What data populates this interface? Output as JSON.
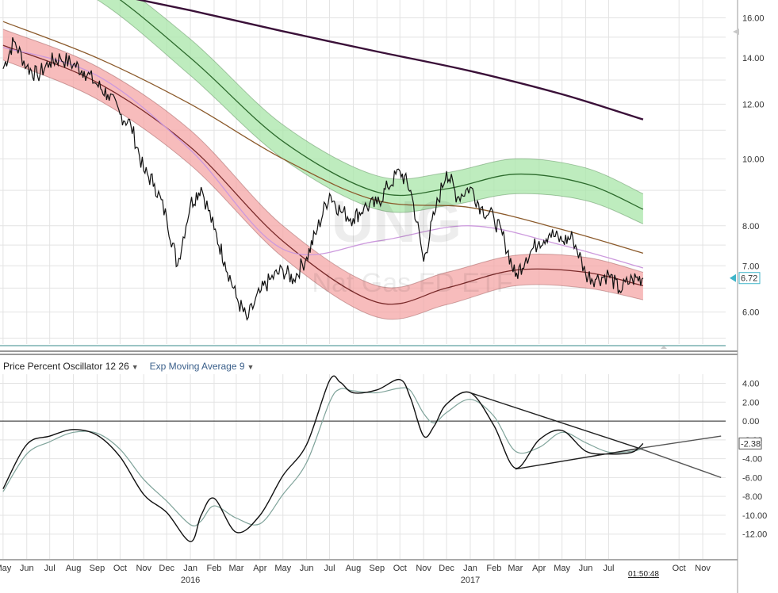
{
  "chart_data": [
    {
      "type": "line",
      "title": "",
      "watermark_symbol": "UNG",
      "watermark_name": "Nat Gas FD ETF",
      "ylim": [
        5.45,
        16.8
      ],
      "y_scale": "log",
      "y_ticks": [
        "16.00",
        "14.00",
        "12.00",
        "10.00",
        "8.00",
        "7.00",
        "6.00"
      ],
      "y_tick_values": [
        16,
        14,
        12,
        10,
        8,
        7,
        6
      ],
      "last_price_label": "6.72",
      "last_price": 6.72,
      "price_series": {
        "name": "",
        "color": "#111111",
        "x": [
          "2015-05-01",
          "2015-05-15",
          "2015-06-01",
          "2015-06-15",
          "2015-07-01",
          "2015-07-15",
          "2015-08-01",
          "2015-08-15",
          "2015-09-01",
          "2015-09-15",
          "2015-10-01",
          "2015-10-15",
          "2015-11-01",
          "2015-11-15",
          "2015-12-01",
          "2015-12-15",
          "2016-01-01",
          "2016-01-15",
          "2016-02-01",
          "2016-02-15",
          "2016-03-01",
          "2016-03-15",
          "2016-04-01",
          "2016-04-15",
          "2016-05-01",
          "2016-05-15",
          "2016-06-01",
          "2016-06-15",
          "2016-07-01",
          "2016-07-15",
          "2016-08-01",
          "2016-08-15",
          "2016-09-01",
          "2016-09-15",
          "2016-10-01",
          "2016-10-15",
          "2016-11-01",
          "2016-11-15",
          "2016-12-01",
          "2016-12-15",
          "2017-01-01",
          "2017-01-15",
          "2017-02-01",
          "2017-02-15",
          "2017-03-01",
          "2017-03-15",
          "2017-04-01",
          "2017-04-15",
          "2017-05-01",
          "2017-05-15",
          "2017-06-01",
          "2017-06-15",
          "2017-07-01",
          "2017-07-15",
          "2017-08-01",
          "2017-08-15"
        ],
        "values": [
          13.5,
          14.8,
          13.6,
          13.2,
          13.8,
          14.0,
          13.7,
          13.4,
          12.8,
          12.4,
          11.6,
          11.2,
          9.6,
          9.2,
          8.2,
          7.0,
          8.6,
          9.1,
          7.9,
          7.1,
          6.3,
          5.85,
          6.4,
          6.7,
          6.9,
          6.7,
          7.2,
          7.9,
          8.9,
          8.4,
          8.2,
          8.5,
          8.6,
          9.1,
          9.6,
          9.0,
          7.1,
          8.3,
          9.6,
          8.8,
          9.1,
          8.5,
          8.2,
          7.6,
          6.75,
          7.2,
          7.6,
          7.8,
          7.6,
          7.7,
          6.8,
          6.7,
          6.8,
          6.45,
          6.7,
          6.72
        ]
      },
      "overlays": [
        {
          "name": "",
          "color": "#3a1038",
          "x": [
            "2015-05-01",
            "2015-09-01",
            "2016-01-01",
            "2016-05-01",
            "2016-09-01",
            "2017-01-01",
            "2017-05-01",
            "2017-08-15"
          ],
          "values": [
            18.6,
            17.5,
            16.4,
            15.3,
            14.3,
            13.4,
            12.4,
            11.4
          ]
        },
        {
          "name": "",
          "color": "#8b5a2b",
          "x": [
            "2015-05-01",
            "2015-09-01",
            "2016-01-01",
            "2016-05-01",
            "2016-09-01",
            "2017-01-01",
            "2017-05-01",
            "2017-08-15"
          ],
          "values": [
            15.8,
            14.0,
            12.0,
            10.0,
            8.7,
            8.5,
            7.9,
            7.3
          ]
        },
        {
          "name": "",
          "color": "#cc99dd",
          "x": [
            "2015-05-01",
            "2015-09-01",
            "2016-01-01",
            "2016-05-01",
            "2016-09-01",
            "2017-01-01",
            "2017-05-01",
            "2017-08-15"
          ],
          "values": [
            14.5,
            13.2,
            10.3,
            7.4,
            7.6,
            8.0,
            7.5,
            6.95
          ]
        }
      ],
      "bands": [
        {
          "name": "",
          "fill": "#a8e6a8",
          "line": "#2d6b2d",
          "x": [
            "2015-05-01",
            "2015-09-01",
            "2016-01-01",
            "2016-05-01",
            "2016-09-01",
            "2016-12-01",
            "2017-03-01",
            "2017-06-01",
            "2017-08-15"
          ],
          "mid": [
            20.5,
            17.9,
            14.0,
            10.6,
            8.95,
            9.05,
            9.5,
            9.2,
            8.45
          ],
          "upper": [
            21.4,
            18.8,
            14.9,
            11.2,
            9.45,
            9.55,
            10.0,
            9.7,
            8.9
          ],
          "lower": [
            19.6,
            17.0,
            13.2,
            10.0,
            8.45,
            8.55,
            8.9,
            8.7,
            8.05
          ]
        },
        {
          "name": "",
          "fill": "#f4a6a6",
          "line": "#7a2a2a",
          "x": [
            "2015-05-01",
            "2015-09-01",
            "2016-01-01",
            "2016-05-01",
            "2016-09-01",
            "2016-12-01",
            "2017-03-01",
            "2017-06-01",
            "2017-08-15"
          ],
          "mid": [
            14.6,
            12.9,
            10.4,
            7.6,
            6.2,
            6.5,
            6.9,
            6.85,
            6.55
          ],
          "upper": [
            15.4,
            13.6,
            11.0,
            8.0,
            6.55,
            6.85,
            7.25,
            7.2,
            6.85
          ],
          "lower": [
            13.9,
            12.2,
            9.8,
            7.2,
            5.9,
            6.15,
            6.55,
            6.5,
            6.25
          ]
        }
      ],
      "grid": true,
      "legend": "none"
    },
    {
      "type": "line",
      "title": "",
      "indicator_label": "Price Percent Oscillator 12 26",
      "signal_label": "Exp Moving Average 9",
      "ylim": [
        -13.2,
        4.8
      ],
      "y_ticks": [
        "4.00",
        "2.00",
        "0.00",
        "-2.00",
        "-4.00",
        "-6.00",
        "-8.00",
        "-10.00",
        "-12.00"
      ],
      "y_tick_values": [
        4,
        2,
        0,
        -2,
        -4,
        -6,
        -8,
        -10,
        -12
      ],
      "last_value_label": "-2.38",
      "zero_line": 0,
      "series": [
        {
          "name": "",
          "color": "#111111",
          "x": [
            "2015-05-01",
            "2015-06-01",
            "2015-07-01",
            "2015-08-01",
            "2015-09-01",
            "2015-10-01",
            "2015-11-01",
            "2015-12-01",
            "2016-01-01",
            "2016-01-15",
            "2016-02-01",
            "2016-03-01",
            "2016-04-01",
            "2016-05-01",
            "2016-06-01",
            "2016-07-01",
            "2016-07-15",
            "2016-08-01",
            "2016-09-01",
            "2016-10-01",
            "2016-10-15",
            "2016-11-01",
            "2016-11-15",
            "2016-12-01",
            "2017-01-01",
            "2017-02-01",
            "2017-03-01",
            "2017-04-01",
            "2017-05-01",
            "2017-06-01",
            "2017-07-01",
            "2017-08-01",
            "2017-08-15"
          ],
          "values": [
            -7.2,
            -2.5,
            -1.6,
            -0.9,
            -1.5,
            -3.8,
            -7.8,
            -9.7,
            -12.8,
            -10.0,
            -8.2,
            -11.8,
            -10.0,
            -5.8,
            -2.5,
            4.3,
            4.1,
            3.0,
            3.3,
            4.4,
            2.4,
            -1.6,
            -0.5,
            1.8,
            3.0,
            -0.5,
            -5.0,
            -2.0,
            -1.0,
            -3.2,
            -3.5,
            -3.3,
            -2.38
          ]
        },
        {
          "name": "",
          "color": "#7fa39a",
          "x": [
            "2015-05-01",
            "2015-06-01",
            "2015-07-01",
            "2015-08-01",
            "2015-09-01",
            "2015-10-01",
            "2015-11-01",
            "2015-12-01",
            "2016-01-01",
            "2016-01-15",
            "2016-02-01",
            "2016-03-01",
            "2016-04-01",
            "2016-05-01",
            "2016-06-01",
            "2016-07-01",
            "2016-07-15",
            "2016-08-01",
            "2016-09-01",
            "2016-10-01",
            "2016-10-15",
            "2016-11-01",
            "2016-11-15",
            "2016-12-01",
            "2017-01-01",
            "2017-02-01",
            "2017-03-01",
            "2017-04-01",
            "2017-05-01",
            "2017-06-01",
            "2017-07-01",
            "2017-08-01",
            "2017-08-15"
          ],
          "values": [
            -7.5,
            -3.5,
            -2.2,
            -1.2,
            -1.3,
            -3.0,
            -6.2,
            -8.5,
            -11.0,
            -10.6,
            -9.0,
            -10.3,
            -10.9,
            -7.8,
            -4.4,
            2.0,
            3.4,
            3.2,
            3.0,
            3.5,
            3.2,
            0.8,
            -0.2,
            0.9,
            2.3,
            0.5,
            -3.2,
            -2.8,
            -1.2,
            -2.3,
            -3.3,
            -3.2,
            -2.9
          ]
        }
      ],
      "trendlines": [
        {
          "color": "#222222",
          "x": [
            "2017-01-01",
            "2017-08-10"
          ],
          "values": [
            3.0,
            -2.9
          ]
        },
        {
          "color": "#222222",
          "x": [
            "2017-03-01",
            "2017-08-10"
          ],
          "values": [
            -5.1,
            -2.9
          ]
        },
        {
          "color": "#555555",
          "x": [
            "2017-08-10",
            "2017-11-25"
          ],
          "values": [
            -2.9,
            -6.0
          ]
        },
        {
          "color": "#555555",
          "x": [
            "2017-08-10",
            "2017-11-25"
          ],
          "values": [
            -2.9,
            -1.6
          ]
        }
      ],
      "grid": true,
      "legend": "none"
    }
  ],
  "x_axis": {
    "range": [
      "2015-04-27",
      "2017-12-01"
    ],
    "months": [
      {
        "label": "May",
        "date": "2015-05-01"
      },
      {
        "label": "Jun",
        "date": "2015-06-01"
      },
      {
        "label": "Jul",
        "date": "2015-07-01"
      },
      {
        "label": "Aug",
        "date": "2015-08-01"
      },
      {
        "label": "Sep",
        "date": "2015-09-01"
      },
      {
        "label": "Oct",
        "date": "2015-10-01"
      },
      {
        "label": "Nov",
        "date": "2015-11-01"
      },
      {
        "label": "Dec",
        "date": "2015-12-01"
      },
      {
        "label": "Jan",
        "date": "2016-01-01"
      },
      {
        "label": "Feb",
        "date": "2016-02-01"
      },
      {
        "label": "Mar",
        "date": "2016-03-01"
      },
      {
        "label": "Apr",
        "date": "2016-04-01"
      },
      {
        "label": "May",
        "date": "2016-05-01"
      },
      {
        "label": "Jun",
        "date": "2016-06-01"
      },
      {
        "label": "Jul",
        "date": "2016-07-01"
      },
      {
        "label": "Aug",
        "date": "2016-08-01"
      },
      {
        "label": "Sep",
        "date": "2016-09-01"
      },
      {
        "label": "Oct",
        "date": "2016-10-01"
      },
      {
        "label": "Nov",
        "date": "2016-11-01"
      },
      {
        "label": "Dec",
        "date": "2016-12-01"
      },
      {
        "label": "Jan",
        "date": "2017-01-01"
      },
      {
        "label": "Feb",
        "date": "2017-02-01"
      },
      {
        "label": "Mar",
        "date": "2017-03-01"
      },
      {
        "label": "Apr",
        "date": "2017-04-01"
      },
      {
        "label": "May",
        "date": "2017-05-01"
      },
      {
        "label": "Jun",
        "date": "2017-06-01"
      },
      {
        "label": "Jul",
        "date": "2017-07-01"
      },
      {
        "label": "Oct",
        "date": "2017-10-01"
      },
      {
        "label": "Nov",
        "date": "2017-11-01"
      }
    ],
    "years": [
      {
        "label": "2016",
        "date": "2016-01-01"
      },
      {
        "label": "2017",
        "date": "2017-01-01"
      }
    ],
    "countdown_label": "01:50:48"
  }
}
